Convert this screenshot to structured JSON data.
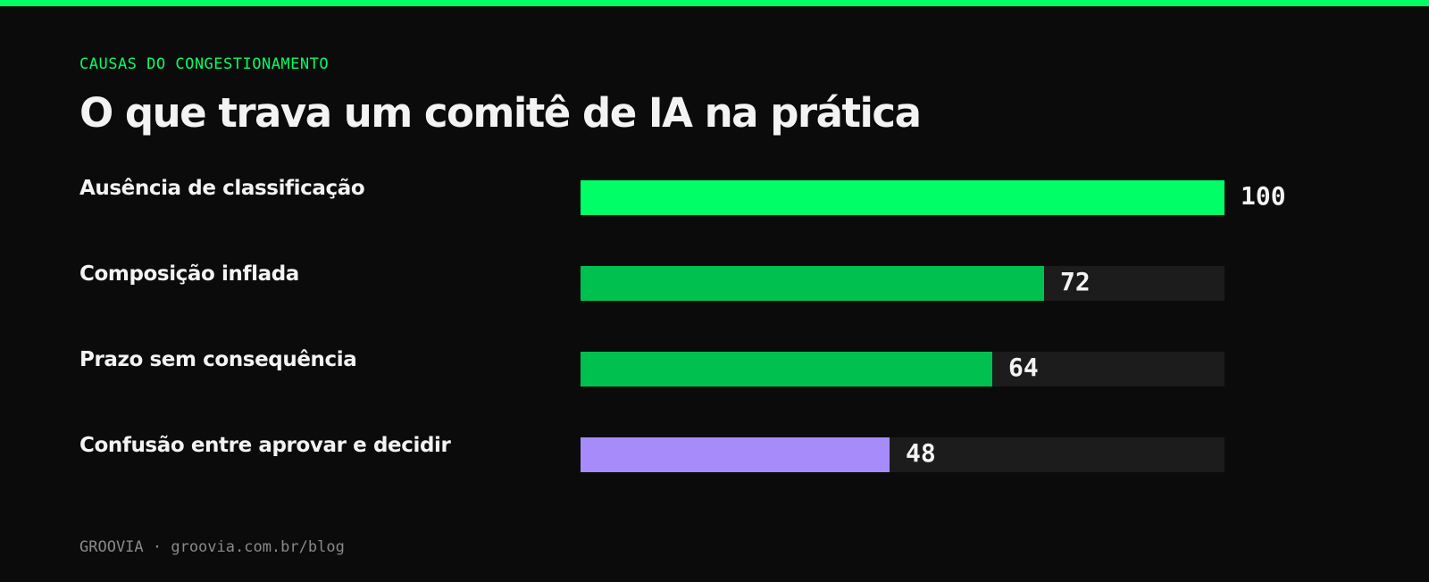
{
  "header": {
    "kicker": "CAUSAS DO CONGESTIONAMENTO",
    "title": "O que trava um comitê de IA na prática"
  },
  "chart_data": {
    "type": "bar",
    "orientation": "horizontal",
    "title": "O que trava um comitê de IA na prática",
    "categories": [
      "Ausência de classificação",
      "Composição inflada",
      "Prazo sem consequência",
      "Confusão entre aprovar e decidir"
    ],
    "values": [
      100,
      72,
      64,
      48
    ],
    "value_labels": [
      "100",
      "72",
      "64",
      "48"
    ],
    "xlim": [
      0,
      100
    ],
    "grid": false,
    "bar_colors": [
      "#00ff66",
      "#00c050",
      "#00c050",
      "#a78bfa"
    ],
    "track_color": "#1c1c1c"
  },
  "colors": {
    "accent": "#00ff66",
    "background": "#0b0b0b",
    "text": "#f3f3f3",
    "muted": "#8a8a8a"
  },
  "footer": {
    "text": "GROOVIA · groovia.com.br/blog"
  }
}
